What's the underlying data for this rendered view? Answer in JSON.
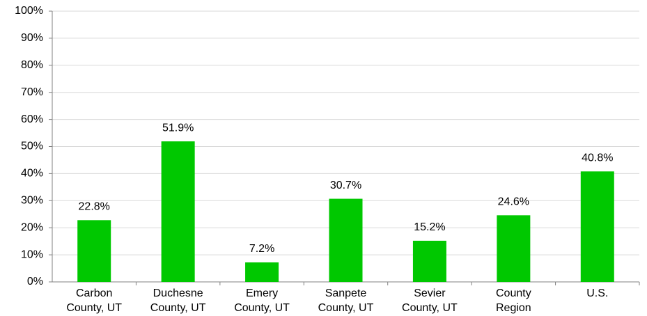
{
  "chart_data": {
    "type": "bar",
    "categories": [
      [
        "Carbon",
        "County, UT"
      ],
      [
        "Duchesne",
        "County, UT"
      ],
      [
        "Emery",
        "County, UT"
      ],
      [
        "Sanpete",
        "County, UT"
      ],
      [
        "Sevier",
        "County, UT"
      ],
      [
        "County",
        "Region"
      ],
      [
        "U.S."
      ]
    ],
    "values": [
      22.8,
      51.9,
      7.2,
      30.7,
      15.2,
      24.6,
      40.8
    ],
    "value_labels": [
      "22.8%",
      "51.9%",
      "7.2%",
      "30.7%",
      "15.2%",
      "24.6%",
      "40.8%"
    ],
    "color": "#00c800",
    "ylim": [
      0,
      100
    ],
    "yticks": [
      {
        "value": 0,
        "label": "0%"
      },
      {
        "value": 10,
        "label": "10%"
      },
      {
        "value": 20,
        "label": "20%"
      },
      {
        "value": 30,
        "label": "30%"
      },
      {
        "value": 40,
        "label": "40%"
      },
      {
        "value": 50,
        "label": "50%"
      },
      {
        "value": 60,
        "label": "60%"
      },
      {
        "value": 70,
        "label": "70%"
      },
      {
        "value": 80,
        "label": "80%"
      },
      {
        "value": 90,
        "label": "90%"
      },
      {
        "value": 100,
        "label": "100%"
      }
    ],
    "grid": true
  }
}
